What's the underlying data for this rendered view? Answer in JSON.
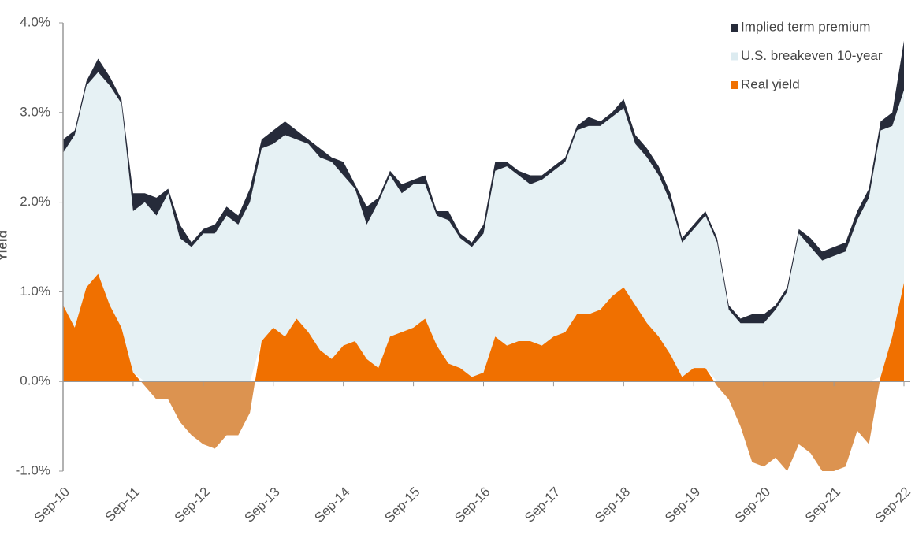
{
  "chart_data": {
    "type": "stacked_area",
    "y_label": "Yield",
    "categories": [
      "Sep-10",
      null,
      null,
      null,
      null,
      null,
      "Sep-11",
      null,
      null,
      null,
      null,
      null,
      "Sep-12",
      null,
      null,
      null,
      null,
      null,
      "Sep-13",
      null,
      null,
      null,
      null,
      null,
      "Sep-14",
      null,
      null,
      null,
      null,
      null,
      "Sep-15",
      null,
      null,
      null,
      null,
      null,
      "Sep-16",
      null,
      null,
      null,
      null,
      null,
      "Sep-17",
      null,
      null,
      null,
      null,
      null,
      "Sep-18",
      null,
      null,
      null,
      null,
      null,
      "Sep-19",
      null,
      null,
      null,
      null,
      null,
      "Sep-20",
      null,
      null,
      null,
      null,
      null,
      "Sep-21",
      null,
      null,
      null,
      null,
      null,
      "Sep-22"
    ],
    "series": [
      {
        "name": "Real yield",
        "color": "#f07000",
        "negative_color": "#dc9350",
        "values": [
          0.85,
          0.6,
          1.05,
          1.2,
          0.85,
          0.6,
          0.1,
          -0.05,
          -0.2,
          -0.2,
          -0.45,
          -0.6,
          -0.7,
          -0.75,
          -0.6,
          -0.6,
          -0.35,
          0.45,
          0.6,
          0.5,
          0.7,
          0.55,
          0.35,
          0.25,
          0.4,
          0.45,
          0.25,
          0.15,
          0.5,
          0.55,
          0.6,
          0.7,
          0.4,
          0.2,
          0.15,
          0.05,
          0.1,
          0.5,
          0.4,
          0.45,
          0.45,
          0.4,
          0.5,
          0.55,
          0.75,
          0.75,
          0.8,
          0.95,
          1.05,
          0.85,
          0.65,
          0.5,
          0.3,
          0.05,
          0.15,
          0.15,
          -0.05,
          -0.2,
          -0.5,
          -0.9,
          -0.95,
          -0.85,
          -1.0,
          -0.7,
          -0.8,
          -1.0,
          -1.0,
          -0.95,
          -0.55,
          -0.7,
          0.05,
          0.5,
          1.1
        ]
      },
      {
        "name": "U.S. breakeven 10-year",
        "color": "#e6f1f4",
        "values": [
          1.7,
          2.15,
          2.25,
          2.25,
          2.45,
          2.5,
          1.8,
          2.05,
          2.05,
          2.3,
          2.05,
          2.1,
          2.35,
          2.4,
          2.45,
          2.35,
          2.35,
          2.15,
          2.05,
          2.25,
          2.0,
          2.1,
          2.15,
          2.2,
          1.9,
          1.7,
          1.5,
          1.85,
          1.8,
          1.55,
          1.6,
          1.5,
          1.45,
          1.6,
          1.45,
          1.45,
          1.55,
          1.85,
          2.0,
          1.85,
          1.75,
          1.85,
          1.85,
          1.9,
          2.05,
          2.1,
          2.05,
          2.0,
          2.0,
          1.8,
          1.85,
          1.8,
          1.7,
          1.5,
          1.55,
          1.7,
          1.6,
          1.0,
          1.15,
          1.55,
          1.6,
          1.65,
          2.0,
          2.35,
          2.3,
          2.35,
          2.4,
          2.4,
          2.35,
          2.75,
          2.75,
          2.35,
          2.15
        ]
      },
      {
        "name": "Implied term premium",
        "color": "#262b3a",
        "values": [
          0.15,
          0.05,
          0.05,
          0.15,
          0.1,
          0.05,
          0.2,
          0.1,
          0.2,
          0.05,
          0.15,
          0.05,
          0.05,
          0.1,
          0.1,
          0.1,
          0.15,
          0.1,
          0.15,
          0.15,
          0.1,
          0.05,
          0.1,
          0.05,
          0.15,
          0.05,
          0.2,
          0.05,
          0.05,
          0.1,
          0.05,
          0.1,
          0.05,
          0.1,
          0.05,
          0.05,
          0.1,
          0.1,
          0.05,
          0.05,
          0.1,
          0.05,
          0.05,
          0.05,
          0.05,
          0.1,
          0.05,
          0.05,
          0.1,
          0.1,
          0.1,
          0.1,
          0.1,
          0.05,
          0.05,
          0.05,
          0.05,
          0.05,
          0.05,
          0.1,
          0.1,
          0.05,
          0.05,
          0.05,
          0.1,
          0.1,
          0.1,
          0.1,
          0.1,
          0.1,
          0.1,
          0.15,
          0.55
        ]
      }
    ],
    "legend_order": [
      2,
      1,
      0
    ],
    "legend": "top-right",
    "ylim": [
      -1,
      4
    ],
    "yticks": [
      {
        "value": -1,
        "label": "-1.0%"
      },
      {
        "value": 0,
        "label": "0.0%"
      },
      {
        "value": 1,
        "label": "1.0%"
      },
      {
        "value": 2,
        "label": "2.0%"
      },
      {
        "value": 3,
        "label": "3.0%"
      },
      {
        "value": 4,
        "label": "4.0%"
      }
    ]
  }
}
